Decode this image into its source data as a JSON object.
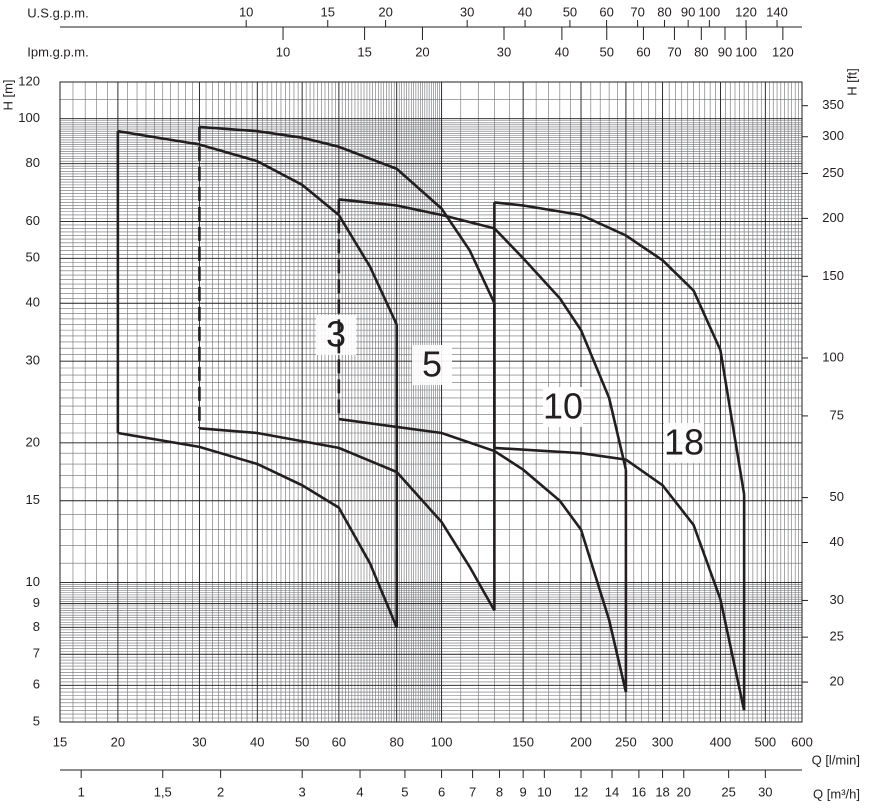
{
  "chart_data": {
    "type": "line",
    "x_log": true,
    "y_log": true,
    "grid": true,
    "xlabel": "Q [l/min]",
    "ylabel": "H [m]",
    "y2label": "H [ft]",
    "xlim": [
      15,
      600
    ],
    "xticks": [
      15,
      20,
      30,
      40,
      50,
      60,
      80,
      100,
      150,
      200,
      250,
      300,
      400,
      500,
      600
    ],
    "ylim": [
      5,
      120
    ],
    "yticks": [
      5,
      6,
      7,
      8,
      9,
      10,
      15,
      20,
      30,
      40,
      50,
      60,
      80,
      100,
      120
    ],
    "y2lim": [
      16.404,
      393.7
    ],
    "y2ticks": [
      20,
      25,
      30,
      40,
      50,
      75,
      100,
      150,
      200,
      250,
      300,
      350
    ],
    "x2label": "U.S.g.p.m.",
    "x2lim": [
      3.963,
      158.5
    ],
    "x2ticks": [
      10,
      15,
      20,
      30,
      40,
      50,
      60,
      70,
      80,
      90,
      100,
      120,
      140
    ],
    "x3label": "Ipm.g.p.m.",
    "x3lim": [
      3.2996,
      131.98
    ],
    "x3ticks": [
      10,
      15,
      20,
      30,
      40,
      50,
      60,
      70,
      80,
      90,
      100,
      120
    ],
    "x4label": "Q [m³/h]",
    "x4lim": [
      0.9,
      36
    ],
    "x4ticks": [
      1,
      {
        "value": 1.5,
        "label": "1,5"
      },
      2,
      3,
      4,
      5,
      6,
      7,
      8,
      9,
      10,
      12,
      14,
      16,
      18,
      20,
      25,
      30
    ],
    "series": [
      {
        "name": "3",
        "color": "#231f20",
        "left_dashed": false,
        "curves": [
          {
            "x": [
              20,
              30,
              40,
              50,
              60,
              70,
              80
            ],
            "values": [
              94,
              88,
              81,
              72,
              62,
              48,
              36
            ]
          },
          {
            "x": [
              20,
              30,
              40,
              50,
              60,
              70,
              80
            ],
            "values": [
              21,
              19.6,
              18,
              16.2,
              14.5,
              11,
              8
            ]
          }
        ]
      },
      {
        "name": "5",
        "color": "#231f20",
        "left_dashed": true,
        "curves": [
          {
            "x": [
              30,
              40,
              50,
              60,
              80,
              100,
              115,
              130
            ],
            "values": [
              96,
              94,
              91,
              87,
              78,
              64,
              52,
              40
            ]
          },
          {
            "x": [
              30,
              40,
              60,
              80,
              100,
              115,
              130
            ],
            "values": [
              21.5,
              21,
              19.5,
              17.3,
              13.5,
              10.8,
              8.7
            ]
          }
        ]
      },
      {
        "name": "10",
        "color": "#231f20",
        "left_dashed": true,
        "curves": [
          {
            "x": [
              60,
              80,
              100,
              130,
              150,
              180,
              200,
              230,
              250
            ],
            "values": [
              67,
              65,
              62,
              58,
              50,
              41,
              35,
              25,
              17.5
            ]
          },
          {
            "x": [
              60,
              100,
              130,
              150,
              180,
              200,
              230,
              250
            ],
            "values": [
              22.5,
              21,
              19.2,
              17.5,
              15,
              13,
              8.3,
              5.8
            ]
          }
        ]
      },
      {
        "name": "18",
        "color": "#231f20",
        "left_dashed": false,
        "curves": [
          {
            "x": [
              130,
              150,
              200,
              250,
              300,
              350,
              400,
              450
            ],
            "values": [
              66,
              65,
              62,
              56,
              49.5,
              42.6,
              31.7,
              15.5
            ]
          },
          {
            "x": [
              130,
              200,
              250,
              300,
              350,
              400,
              450
            ],
            "values": [
              19.5,
              19,
              18.4,
              16.2,
              13.3,
              9.2,
              5.3
            ]
          }
        ]
      }
    ]
  }
}
